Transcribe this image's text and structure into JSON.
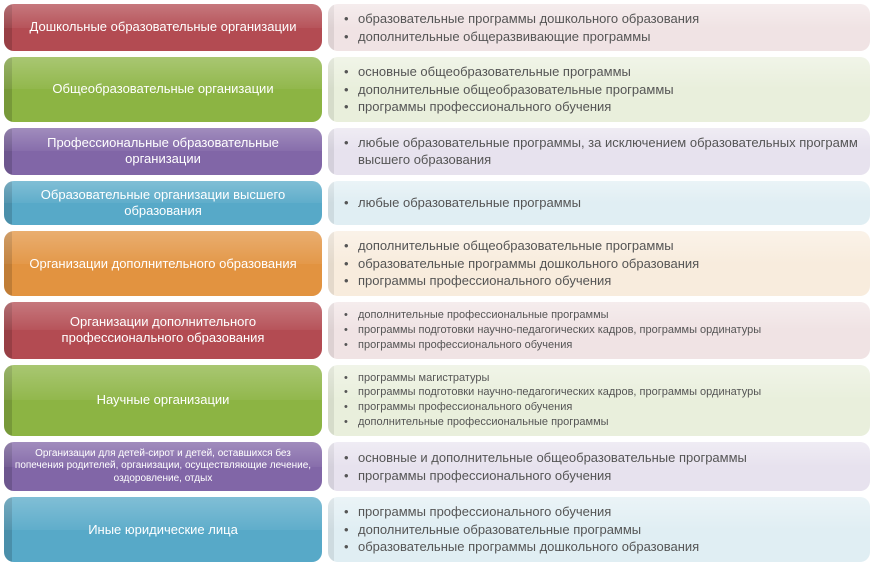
{
  "layout": {
    "label_width": 318,
    "row_gap": 6,
    "border_radius": 10,
    "label_fontsize_default": 13,
    "content_fontsize_default": 13,
    "content_text_color": "#555555"
  },
  "rows": [
    {
      "label": "Дошкольные образовательные организации",
      "label_bg": "#b34b52",
      "label_fontsize": 13,
      "content_bg": "#f0e3e4",
      "content_fontsize": 13,
      "items": [
        "образовательные программы дошкольного образования",
        "дополнительные общеразвивающие программы"
      ]
    },
    {
      "label": "Общеобразовательные организации",
      "label_bg": "#8cb443",
      "label_fontsize": 13,
      "content_bg": "#e9efdc",
      "content_fontsize": 13,
      "items": [
        "основные общеобразовательные программы",
        "дополнительные общеобразовательные программы",
        "программы профессионального обучения"
      ]
    },
    {
      "label": "Профессиональные образовательные организации",
      "label_bg": "#8166a7",
      "label_fontsize": 13,
      "content_bg": "#e7e2ee",
      "content_fontsize": 13,
      "items": [
        "любые образовательные программы, за исключением образовательных программ высшего образования"
      ]
    },
    {
      "label": "Образовательные организации высшего образования",
      "label_bg": "#57a9c8",
      "label_fontsize": 13,
      "content_bg": "#e0eef3",
      "content_fontsize": 13,
      "items": [
        "любые образовательные программы"
      ]
    },
    {
      "label": "Организации дополнительного образования",
      "label_bg": "#e29340",
      "label_fontsize": 13,
      "content_bg": "#f8ecdd",
      "content_fontsize": 13,
      "items": [
        "дополнительные общеобразовательные программы",
        "образовательные программы дошкольного образования",
        "программы профессионального обучения"
      ]
    },
    {
      "label": "Организации дополнительного профессионального образования",
      "label_bg": "#b34b52",
      "label_fontsize": 13,
      "content_bg": "#f0e3e4",
      "content_fontsize": 11,
      "items": [
        "дополнительные профессиональные программы",
        "программы подготовки научно-педагогических кадров, программы ординатуры",
        "программы профессионального обучения"
      ]
    },
    {
      "label": "Научные организации",
      "label_bg": "#8cb443",
      "label_fontsize": 13,
      "content_bg": "#e9efdc",
      "content_fontsize": 11,
      "items": [
        "программы магистратуры",
        "программы подготовки научно-педагогических кадров, программы ординатуры",
        "программы профессионального обучения",
        "дополнительные профессиональные программы"
      ]
    },
    {
      "label": "Организации для детей-сирот и детей, оставшихся без попечения родителей, организации, осуществляющие лечение, оздоровление, отдых",
      "label_bg": "#8166a7",
      "label_fontsize": 10,
      "content_bg": "#e7e2ee",
      "content_fontsize": 13,
      "items": [
        "основные и дополнительные общеобразовательные программы",
        "программы профессионального обучения"
      ]
    },
    {
      "label": "Иные юридические лица",
      "label_bg": "#57a9c8",
      "label_fontsize": 13,
      "content_bg": "#e0eef3",
      "content_fontsize": 13,
      "items": [
        "программы профессионального обучения",
        "дополнительные образовательные программы",
        "образовательные программы дошкольного образования"
      ]
    }
  ]
}
